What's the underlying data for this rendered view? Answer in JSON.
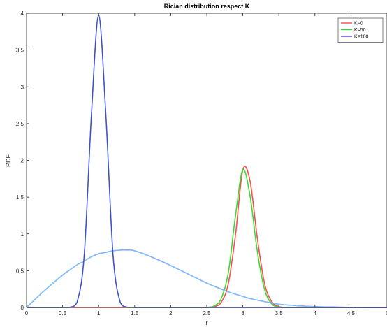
{
  "chart_data": {
    "type": "line",
    "title": "Rician distribution respect K",
    "xlabel": "r",
    "ylabel": "PDF",
    "xlim": [
      0,
      5
    ],
    "ylim": [
      0,
      4
    ],
    "x_ticks": [
      "0",
      "0.5",
      "1",
      "1.5",
      "2",
      "2.5",
      "3",
      "3.5",
      "4",
      "4.5",
      "5"
    ],
    "y_ticks": [
      "0",
      "0.5",
      "1",
      "1.5",
      "2",
      "2.5",
      "3",
      "3.5",
      "4"
    ],
    "grid": false,
    "legend_position": "top-right",
    "x": [
      0,
      0.25,
      0.5,
      0.6,
      0.7,
      0.8,
      0.9,
      1.0,
      1.1,
      1.2,
      1.3,
      1.4,
      1.5,
      1.75,
      2.0,
      2.25,
      2.5,
      2.6,
      2.7,
      2.8,
      2.9,
      3.0,
      3.1,
      3.2,
      3.3,
      3.4,
      3.5,
      3.6,
      3.75,
      4.0,
      4.5,
      5.0
    ],
    "series": [
      {
        "name": "K=0",
        "color": "#ff4d4d",
        "width": 1.6,
        "values": [
          0,
          0,
          0,
          0,
          0,
          0,
          0,
          0,
          0,
          0,
          0,
          0,
          0,
          0,
          0,
          0,
          0,
          0.01,
          0.07,
          0.33,
          1.0,
          1.87,
          1.72,
          0.95,
          0.33,
          0.08,
          0.012,
          0.001,
          0,
          0,
          0,
          0
        ]
      },
      {
        "name": "K=50",
        "color": "#33dd33",
        "width": 1.6,
        "values": [
          0,
          0,
          0,
          0.002,
          0.07,
          0.71,
          2.62,
          3.97,
          2.62,
          0.71,
          0.07,
          0.002,
          0,
          0,
          0,
          0,
          0.002,
          0.02,
          0.12,
          0.48,
          1.26,
          1.87,
          1.52,
          0.77,
          0.25,
          0.05,
          0.006,
          0,
          0,
          0,
          0,
          0
        ]
      },
      {
        "name": "K=100",
        "color": "#4444ee",
        "width": 1.4,
        "values": [
          0,
          0.23,
          0.44,
          0.51,
          0.58,
          0.63,
          0.69,
          0.73,
          0.75,
          0.77,
          0.78,
          0.78,
          0.77,
          0.68,
          0.57,
          0.45,
          0.33,
          0.29,
          0.25,
          0.21,
          0.18,
          0.15,
          0.12,
          0.1,
          0.08,
          0.06,
          0.045,
          0.035,
          0.025,
          0.011,
          0.002,
          0
        ]
      },
      {
        "color": "#ffff33",
        "width": 1.2,
        "values": [
          0,
          0,
          0,
          0.002,
          0.07,
          0.71,
          2.62,
          3.97,
          2.62,
          0.71,
          0.07,
          0.002,
          0,
          0,
          0,
          0,
          0,
          0,
          0,
          0,
          0,
          0,
          0,
          0,
          0,
          0,
          0,
          0,
          0,
          0,
          0,
          0
        ]
      },
      {
        "color": "#ff55ff",
        "width": 1.2,
        "values": [
          0,
          0.23,
          0.44,
          0.51,
          0.58,
          0.63,
          0.69,
          0.73,
          0.75,
          0.77,
          0.78,
          0.78,
          0.77,
          0.68,
          0.57,
          0.45,
          0.33,
          0.29,
          0.25,
          0.21,
          0.18,
          0.15,
          0.12,
          0.1,
          0.08,
          0.06,
          0.045,
          0.035,
          0.025,
          0.011,
          0.002,
          0
        ]
      },
      {
        "color": "#55ddff",
        "width": 1.0,
        "values": [
          0,
          0.23,
          0.44,
          0.51,
          0.58,
          0.63,
          0.69,
          0.73,
          0.75,
          0.77,
          0.78,
          0.78,
          0.77,
          0.68,
          0.57,
          0.45,
          0.33,
          0.29,
          0.25,
          0.21,
          0.18,
          0.15,
          0.12,
          0.1,
          0.08,
          0.06,
          0.045,
          0.035,
          0.025,
          0.011,
          0.002,
          0
        ]
      },
      {
        "color": "#4444ee",
        "width": 1.4,
        "values": [
          0,
          0,
          0,
          0.002,
          0.07,
          0.71,
          2.62,
          3.97,
          2.62,
          0.71,
          0.07,
          0.002,
          0,
          0,
          0,
          0,
          0,
          0,
          0,
          0,
          0,
          0,
          0,
          0,
          0,
          0,
          0,
          0,
          0,
          0,
          0,
          0
        ]
      }
    ]
  }
}
